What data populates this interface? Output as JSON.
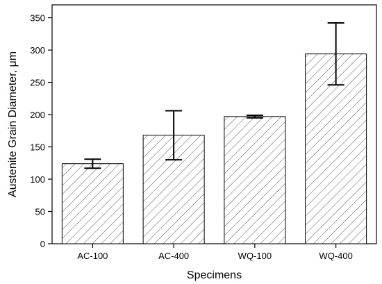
{
  "chart_data": {
    "type": "bar",
    "title": "",
    "xlabel": "Specimens",
    "ylabel": "Austenite Grain Diameter, μm",
    "categories": [
      "AC-100",
      "AC-400",
      "WQ-100",
      "WQ-400"
    ],
    "values": [
      124,
      168,
      197,
      294
    ],
    "error_low": [
      117,
      130,
      195,
      246
    ],
    "error_high": [
      131,
      206,
      199,
      342
    ],
    "ylim": [
      0,
      370
    ],
    "yticks": [
      0,
      50,
      100,
      150,
      200,
      250,
      300,
      350
    ],
    "bar_fill": "hatched",
    "bar_stroke_color": "#000000",
    "hatch_color": "#555555",
    "grid": false,
    "legend": false
  }
}
